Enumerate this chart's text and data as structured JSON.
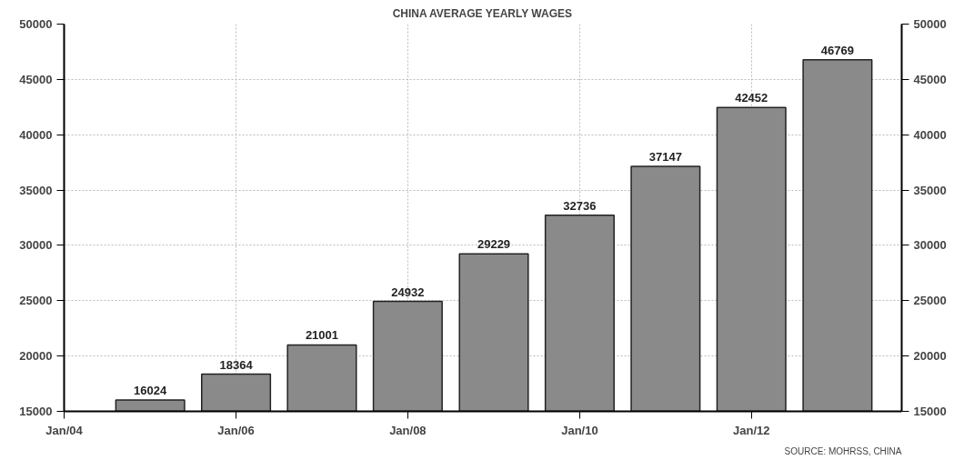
{
  "chart_data": {
    "type": "bar",
    "title": "CHINA AVERAGE YEARLY WAGES",
    "x": [
      "2005",
      "2006",
      "2007",
      "2008",
      "2009",
      "2010",
      "2011",
      "2012",
      "2013"
    ],
    "values": [
      16024,
      18364,
      21001,
      24932,
      29229,
      32736,
      37147,
      42452,
      46769
    ],
    "color": "#8a8a8a",
    "data_labels": true,
    "xlim": [
      "2004-01",
      "2013-10"
    ],
    "xticks": [
      {
        "value": "2004-01",
        "label": "Jan/04"
      },
      {
        "value": "2006-01",
        "label": "Jan/06"
      },
      {
        "value": "2008-01",
        "label": "Jan/08"
      },
      {
        "value": "2010-01",
        "label": "Jan/10"
      },
      {
        "value": "2012-01",
        "label": "Jan/12"
      }
    ],
    "ylim": [
      15000,
      50000
    ],
    "yticks": [
      15000,
      20000,
      25000,
      30000,
      35000,
      40000,
      45000,
      50000
    ],
    "y2lim": [
      15000,
      50000
    ],
    "y2ticks": [
      15000,
      20000,
      25000,
      30000,
      35000,
      40000,
      45000,
      50000
    ],
    "grid": true,
    "annotations": [
      "SOURCE: MOHRSS, CHINA"
    ]
  }
}
